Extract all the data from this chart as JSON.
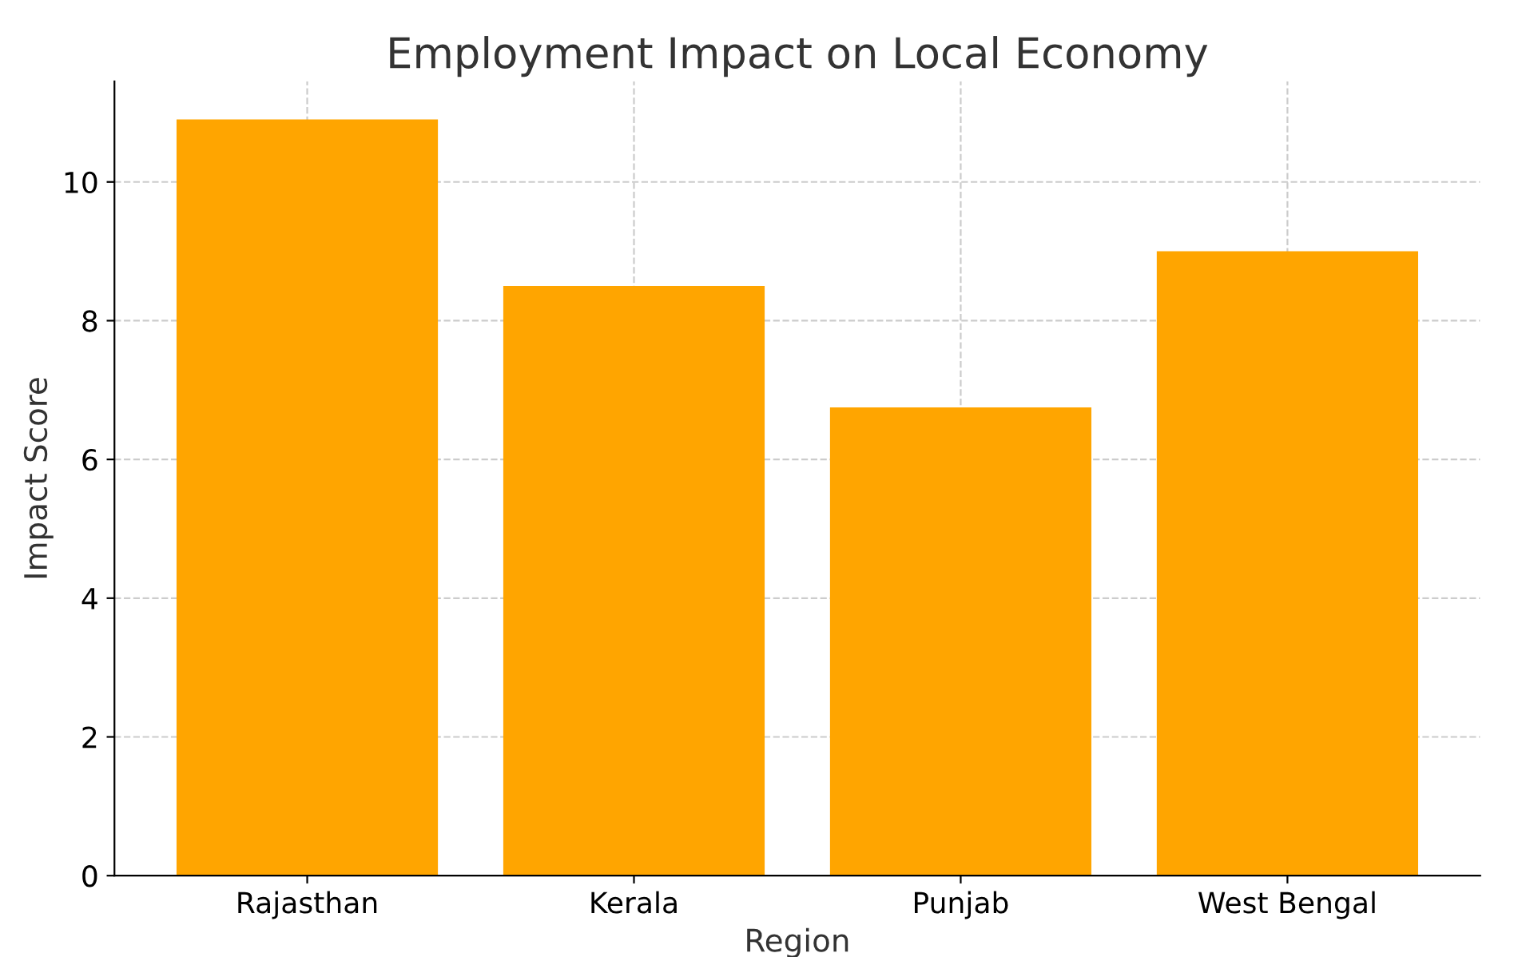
{
  "chart_data": {
    "type": "bar",
    "title": "Employment Impact on Local Economy",
    "xlabel": "Region",
    "ylabel": "Impact Score",
    "categories": [
      "Rajasthan",
      "Kerala",
      "Punjab",
      "West Bengal"
    ],
    "values": [
      10.9,
      8.5,
      6.75,
      9.0
    ],
    "color": "#ffa500",
    "ylim": [
      0,
      11.45
    ],
    "yticks": [
      0,
      2,
      4,
      6,
      8,
      10
    ],
    "grid": true,
    "line_style": "dashed"
  }
}
